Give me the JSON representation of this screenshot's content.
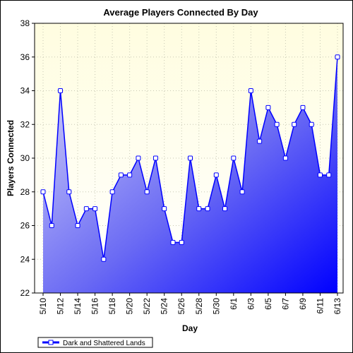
{
  "chart_data": {
    "type": "area",
    "title": "Average Players Connected By Day",
    "xlabel": "Day",
    "ylabel": "Players Connected",
    "ylim": [
      22,
      38
    ],
    "yticks": [
      22,
      24,
      26,
      28,
      30,
      32,
      34,
      36,
      38
    ],
    "grid": true,
    "legend_position": "bottom-left",
    "x_tick_labels": [
      "5/10",
      "5/12",
      "5/14",
      "5/16",
      "5/18",
      "5/20",
      "5/22",
      "5/24",
      "5/26",
      "5/28",
      "5/30",
      "6/1",
      "6/3",
      "6/5",
      "6/7",
      "6/9",
      "6/11",
      "6/13"
    ],
    "categories": [
      "5/10",
      "5/11",
      "5/12",
      "5/13",
      "5/14",
      "5/15",
      "5/16",
      "5/17",
      "5/18",
      "5/19",
      "5/20",
      "5/21",
      "5/22",
      "5/23",
      "5/24",
      "5/25",
      "5/26",
      "5/27",
      "5/28",
      "5/29",
      "5/30",
      "5/31",
      "6/1",
      "6/2",
      "6/3",
      "6/4",
      "6/5",
      "6/6",
      "6/7",
      "6/8",
      "6/9",
      "6/10",
      "6/11",
      "6/12",
      "6/13"
    ],
    "series": [
      {
        "name": "Dark and Shattered Lands",
        "color": "#0000ff",
        "values": [
          28,
          26,
          34,
          28,
          26,
          27,
          27,
          24,
          28,
          29,
          29,
          30,
          28,
          30,
          27,
          25,
          25,
          30,
          27,
          27,
          29,
          27,
          30,
          28,
          34,
          31,
          33,
          32,
          30,
          32,
          33,
          32,
          29,
          29,
          36
        ]
      }
    ]
  }
}
